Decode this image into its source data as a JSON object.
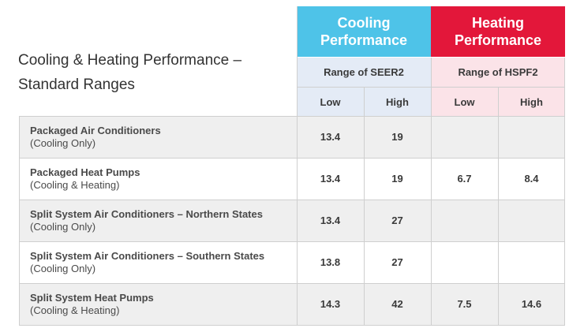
{
  "title": {
    "line1": "Cooling & Heating Performance –",
    "line2": "Standard Ranges"
  },
  "headers": {
    "cooling": {
      "line1": "Cooling",
      "line2": "Performance",
      "color": "#4ec3e8"
    },
    "heating": {
      "line1": "Heating",
      "line2": "Performance",
      "color": "#e3173a"
    },
    "cooling_sub": "Range of SEER2",
    "heating_sub": "Range of HSPF2",
    "low": "Low",
    "high": "High"
  },
  "rows": [
    {
      "name": "Packaged Air Conditioners",
      "sub": "(Cooling Only)",
      "seer_low": "13.4",
      "seer_high": "19",
      "hspf_low": "",
      "hspf_high": ""
    },
    {
      "name": "Packaged Heat Pumps",
      "sub": "(Cooling & Heating)",
      "seer_low": "13.4",
      "seer_high": "19",
      "hspf_low": "6.7",
      "hspf_high": "8.4"
    },
    {
      "name": "Split System Air Conditioners – Northern States",
      "sub": "(Cooling Only)",
      "seer_low": "13.4",
      "seer_high": "27",
      "hspf_low": "",
      "hspf_high": ""
    },
    {
      "name": "Split System Air Conditioners – Southern States",
      "sub": "(Cooling Only)",
      "seer_low": "13.8",
      "seer_high": "27",
      "hspf_low": "",
      "hspf_high": ""
    },
    {
      "name": "Split System Heat Pumps",
      "sub": "(Cooling & Heating)",
      "seer_low": "14.3",
      "seer_high": "42",
      "hspf_low": "7.5",
      "hspf_high": "14.6"
    }
  ]
}
